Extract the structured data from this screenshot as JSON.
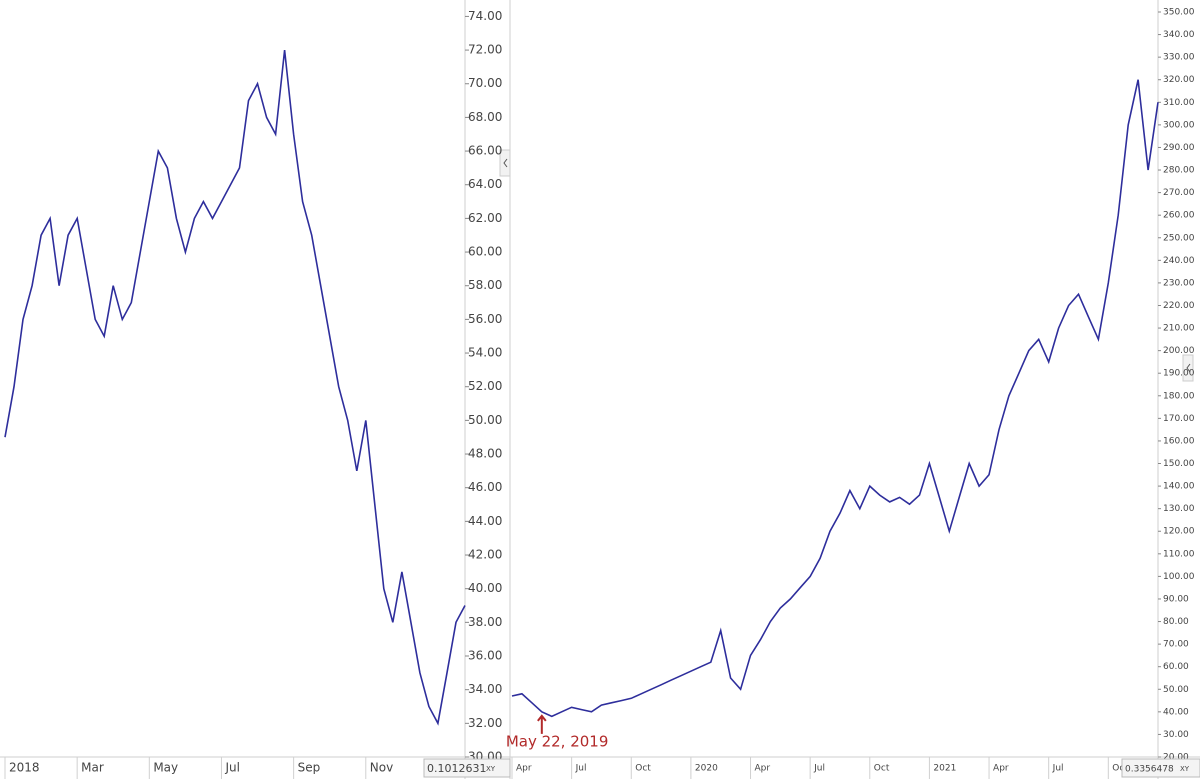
{
  "chart_data": [
    {
      "type": "line",
      "color": "#2e2e9c",
      "categories": [
        "2018",
        null,
        null,
        null,
        null,
        null,
        null,
        null,
        "Mar",
        null,
        null,
        null,
        null,
        null,
        null,
        null,
        "May",
        null,
        null,
        null,
        null,
        null,
        null,
        null,
        "Jul",
        null,
        null,
        null,
        null,
        null,
        null,
        null,
        "Sep",
        null,
        null,
        null,
        null,
        null,
        null,
        null,
        "Nov",
        null,
        null,
        null,
        null,
        null,
        null,
        null,
        null,
        null,
        null,
        null
      ],
      "values": [
        49,
        52,
        56,
        58,
        61,
        62,
        58,
        61,
        62,
        59,
        56,
        55,
        58,
        56,
        57,
        60,
        63,
        66,
        65,
        62,
        60,
        62,
        63,
        62,
        63,
        64,
        65,
        69,
        70,
        68,
        67,
        72,
        67,
        63,
        61,
        58,
        55,
        52,
        50,
        47,
        50,
        45,
        40,
        38,
        41,
        38,
        35,
        33,
        32,
        35,
        38,
        39
      ],
      "ylim": [
        30,
        74.5
      ],
      "yticks": [
        {
          "value": 30,
          "label": "30.00"
        },
        {
          "value": 32,
          "label": "32.00"
        },
        {
          "value": 34,
          "label": "34.00"
        },
        {
          "value": 36,
          "label": "36.00"
        },
        {
          "value": 38,
          "label": "38.00"
        },
        {
          "value": 40,
          "label": "40.00"
        },
        {
          "value": 42,
          "label": "42.00"
        },
        {
          "value": 44,
          "label": "44.00"
        },
        {
          "value": 46,
          "label": "46.00"
        },
        {
          "value": 48,
          "label": "48.00"
        },
        {
          "value": 50,
          "label": "50.00"
        },
        {
          "value": 52,
          "label": "52.00"
        },
        {
          "value": 54,
          "label": "54.00"
        },
        {
          "value": 56,
          "label": "56.00"
        },
        {
          "value": 58,
          "label": "58.00"
        },
        {
          "value": 60,
          "label": "60.00"
        },
        {
          "value": 62,
          "label": "62.00"
        },
        {
          "value": 64,
          "label": "64.00"
        },
        {
          "value": 66,
          "label": "66.00"
        },
        {
          "value": 68,
          "label": "68.00"
        },
        {
          "value": 70,
          "label": "70.00"
        },
        {
          "value": 72,
          "label": "72.00"
        },
        {
          "value": 74,
          "label": "74.00"
        }
      ],
      "readout": "0.1012631",
      "readout_unit": "XY"
    },
    {
      "type": "line",
      "color": "#2e2e9c",
      "categories": [
        "Apr",
        null,
        null,
        null,
        null,
        null,
        "Jul",
        null,
        null,
        null,
        null,
        null,
        "Oct",
        null,
        null,
        null,
        null,
        null,
        "2020",
        null,
        null,
        null,
        null,
        null,
        "Apr",
        null,
        null,
        null,
        null,
        null,
        "Jul",
        null,
        null,
        null,
        null,
        null,
        "Oct",
        null,
        null,
        null,
        null,
        null,
        "2021",
        null,
        null,
        null,
        null,
        null,
        "Apr",
        null,
        null,
        null,
        null,
        null,
        "Jul",
        null,
        null,
        null,
        null,
        null,
        "Oct",
        null,
        null,
        null,
        null,
        null
      ],
      "values": [
        47,
        48,
        44,
        40,
        38,
        40,
        42,
        41,
        40,
        43,
        44,
        45,
        46,
        48,
        50,
        52,
        54,
        56,
        58,
        60,
        62,
        76,
        55,
        50,
        65,
        72,
        80,
        86,
        90,
        95,
        100,
        108,
        120,
        128,
        138,
        130,
        140,
        136,
        133,
        135,
        132,
        136,
        150,
        135,
        120,
        135,
        150,
        140,
        145,
        165,
        180,
        190,
        200,
        205,
        195,
        210,
        220,
        225,
        215,
        205,
        230,
        260,
        300,
        320,
        280,
        310
      ],
      "ylim": [
        20,
        350
      ],
      "yticks": [
        {
          "value": 20,
          "label": "20.00"
        },
        {
          "value": 30,
          "label": "30.00"
        },
        {
          "value": 40,
          "label": "40.00"
        },
        {
          "value": 50,
          "label": "50.00"
        },
        {
          "value": 60,
          "label": "60.00"
        },
        {
          "value": 70,
          "label": "70.00"
        },
        {
          "value": 80,
          "label": "80.00"
        },
        {
          "value": 90,
          "label": "90.00"
        },
        {
          "value": 100,
          "label": "100.00"
        },
        {
          "value": 110,
          "label": "110.00"
        },
        {
          "value": 120,
          "label": "120.00"
        },
        {
          "value": 130,
          "label": "130.00"
        },
        {
          "value": 140,
          "label": "140.00"
        },
        {
          "value": 150,
          "label": "150.00"
        },
        {
          "value": 160,
          "label": "160.00"
        },
        {
          "value": 170,
          "label": "170.00"
        },
        {
          "value": 180,
          "label": "180.00"
        },
        {
          "value": 190,
          "label": "190.00"
        },
        {
          "value": 200,
          "label": "200.00"
        },
        {
          "value": 210,
          "label": "210.00"
        },
        {
          "value": 220,
          "label": "220.00"
        },
        {
          "value": 230,
          "label": "230.00"
        },
        {
          "value": 240,
          "label": "240.00"
        },
        {
          "value": 250,
          "label": "250.00"
        },
        {
          "value": 260,
          "label": "260.00"
        },
        {
          "value": 270,
          "label": "270.00"
        },
        {
          "value": 280,
          "label": "280.00"
        },
        {
          "value": 290,
          "label": "290.00"
        },
        {
          "value": 300,
          "label": "300.00"
        },
        {
          "value": 310,
          "label": "310.00"
        },
        {
          "value": 320,
          "label": "320.00"
        },
        {
          "value": 330,
          "label": "330.00"
        },
        {
          "value": 340,
          "label": "340.00"
        },
        {
          "value": 350,
          "label": "350.00"
        }
      ],
      "annotation": {
        "text": "May 22, 2019",
        "category_index": 3,
        "color": "#b22a2a"
      },
      "readout": "0.3356478",
      "readout_unit": "XY"
    }
  ]
}
